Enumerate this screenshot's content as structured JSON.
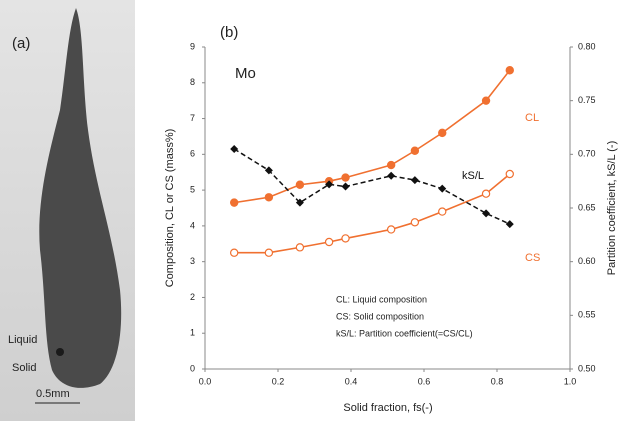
{
  "micrograph": {
    "label": "(a)",
    "liquid": "Liquid",
    "solid": "Solid",
    "scale": "0.5mm"
  },
  "chart_data": {
    "type": "line",
    "title": "(b)",
    "annotation": "Mo",
    "xlabel": "Solid fraction, fs(-)",
    "ylabel": "Composition, CL or CS (mass%)",
    "y2label": "Partition coefficient, kS/L (-)",
    "notes": [
      "CL: Liquid composition",
      "CS: Solid composition",
      "kS/L: Partition coefficient(=CS/CL)"
    ],
    "x": [
      0.08,
      0.175,
      0.26,
      0.34,
      0.385,
      0.51,
      0.575,
      0.65,
      0.77,
      0.835
    ],
    "xlim": [
      0,
      1
    ],
    "xticks": [
      {
        "value": 0,
        "label": "0.0"
      },
      {
        "value": 0.2,
        "label": "0.2"
      },
      {
        "value": 0.4,
        "label": "0.4"
      },
      {
        "value": 0.6,
        "label": "0.6"
      },
      {
        "value": 0.8,
        "label": "0.8"
      },
      {
        "value": 1,
        "label": "1.0"
      }
    ],
    "ylim": [
      0,
      9
    ],
    "yticks": [
      0,
      1,
      2,
      3,
      4,
      5,
      6,
      7,
      8,
      9
    ],
    "y2lim": [
      0.5,
      0.8
    ],
    "y2ticks": [
      {
        "value": 0.5,
        "label": "0.50"
      },
      {
        "value": 0.55,
        "label": "0.55"
      },
      {
        "value": 0.6,
        "label": "0.60"
      },
      {
        "value": 0.65,
        "label": "0.65"
      },
      {
        "value": 0.7,
        "label": "0.70"
      },
      {
        "value": 0.75,
        "label": "0.75"
      },
      {
        "value": 0.8,
        "label": "0.80"
      }
    ],
    "grid": false,
    "series": [
      {
        "name": "CL",
        "color": "#f07030",
        "marker": "filled-circle",
        "dashed": false,
        "values": [
          4.65,
          4.8,
          5.15,
          5.25,
          5.35,
          5.7,
          6.1,
          6.6,
          7.5,
          8.35
        ]
      },
      {
        "name": "CS",
        "color": "#f07030",
        "marker": "open-circle",
        "dashed": false,
        "values": [
          3.25,
          3.25,
          3.4,
          3.55,
          3.65,
          3.9,
          4.1,
          4.4,
          4.9,
          5.45
        ]
      },
      {
        "name": "kS/L",
        "color": "#111111",
        "marker": "diamond",
        "dashed": true,
        "axis": "y2",
        "values": [
          0.705,
          0.685,
          0.655,
          0.672,
          0.67,
          0.68,
          0.676,
          0.668,
          0.645,
          0.635
        ]
      }
    ]
  }
}
